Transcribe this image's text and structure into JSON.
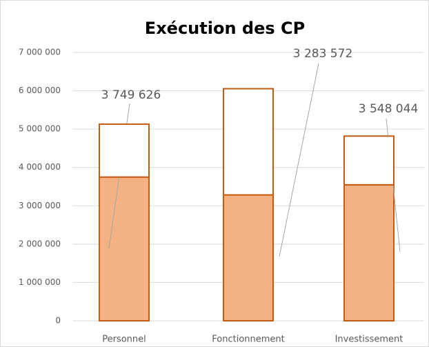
{
  "chart_data": {
    "type": "stacked_bar",
    "title": "Exécution des CP",
    "categories": [
      "Personnel",
      "Fonctionnement",
      "Investissement"
    ],
    "series": [
      {
        "color": "#f4b183",
        "values": [
          3749626,
          3283572,
          3548044
        ],
        "value_labels": [
          "3 749 626",
          "3 283 572",
          "3 548 044"
        ]
      },
      {
        "color": "#ffffff",
        "values": [
          1380000,
          2770000,
          1270000
        ]
      }
    ],
    "ylim": [
      0,
      7000000
    ],
    "yticks": [
      0,
      {
        "value": 1000000,
        "label": "1 000 000"
      },
      {
        "value": 2000000,
        "label": "2 000 000"
      },
      {
        "value": 3000000,
        "label": "3 000 000"
      },
      {
        "value": 4000000,
        "label": "4 000 000"
      },
      {
        "value": 5000000,
        "label": "5 000 000"
      },
      {
        "value": 6000000,
        "label": "6 000 000"
      },
      {
        "value": 7000000,
        "label": "7 000 000"
      }
    ],
    "grid": true
  }
}
